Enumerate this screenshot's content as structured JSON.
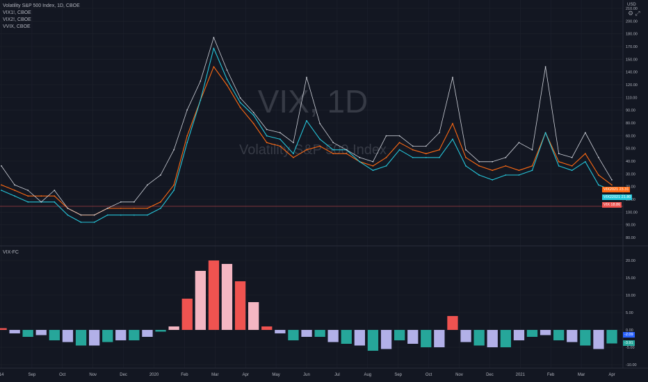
{
  "legend": {
    "main": "Volatility S&P 500 Index, 1D, CBOE",
    "comparisons": [
      "VIX1!, CBOE",
      "VIX2!, CBOE",
      "VVIX, CBOE"
    ]
  },
  "watermark": {
    "symbol": "VIX, 1D",
    "name": "Volatility S&P 500 Index"
  },
  "indicator": {
    "label": "VIX-FC"
  },
  "toolbar": {
    "currency": "USD"
  },
  "colors": {
    "background": "#131722",
    "vix_line": "#ff6a13",
    "vix2_line": "#26c6da",
    "vvix_line": "#d1d4dc",
    "hist_positive": "#ef5350",
    "hist_pos_light": "#f4b6c2",
    "hist_negative": "#26a69a",
    "hist_neg_light": "#b2b0e8",
    "price_line": "#ef5350"
  },
  "price_axis": {
    "main_ticks": [
      "210.00",
      "200.00",
      "180.00",
      "170.00",
      "150.00",
      "140.00",
      "120.00",
      "110.00",
      "90.00",
      "80.00",
      "60.00",
      "50.00",
      "40.00",
      "30.00",
      "20.00",
      "10.00",
      "100.00",
      "90.00",
      "80.00"
    ],
    "indicator_ticks": [
      "20.00",
      "15.00",
      "10.00",
      "5.00",
      "0.00",
      "-5.00",
      "-10.00"
    ]
  },
  "price_tags": [
    {
      "label": "VIX2021",
      "value": "23.31",
      "color": "#ff6a13"
    },
    {
      "label": "VIX22021",
      "value": "21.80",
      "color": "#26c6da"
    },
    {
      "label": "VIX",
      "value": "18.86",
      "color": "#ef5350"
    },
    {
      "label": "",
      "value": "-2.09",
      "color": "#2962ff"
    },
    {
      "label": "",
      "value": "-3.91",
      "color": "#26a69a"
    }
  ],
  "time_axis": [
    "14",
    "Sep",
    "Oct",
    "Nov",
    "Dec",
    "2020",
    "Feb",
    "Mar",
    "Apr",
    "May",
    "Jun",
    "Jul",
    "Aug",
    "Sep",
    "Oct",
    "Nov",
    "Dec",
    "2021",
    "Feb",
    "Mar",
    "Apr"
  ],
  "chart_data": [
    {
      "type": "line",
      "title": "Volatility S&P 500 Index, 1D, CBOE",
      "x": [
        "Aug-14",
        "Aug-29",
        "Sep-16",
        "Oct-01",
        "Oct-16",
        "Nov-01",
        "Nov-16",
        "Dec-01",
        "Dec-16",
        "Jan-01",
        "Jan-16",
        "Feb-01",
        "Feb-16",
        "Feb-24",
        "Mar-02",
        "Mar-09",
        "Mar-16",
        "Mar-23",
        "Apr-01",
        "Apr-16",
        "May-01",
        "May-16",
        "Jun-01",
        "Jun-11",
        "Jun-16",
        "Jul-01",
        "Jul-16",
        "Aug-01",
        "Aug-16",
        "Sep-01",
        "Sep-08",
        "Sep-16",
        "Oct-01",
        "Oct-16",
        "Oct-30",
        "Nov-09",
        "Nov-16",
        "Dec-01",
        "Dec-16",
        "Jan-01",
        "Jan-16",
        "Jan-27",
        "Feb-01",
        "Feb-16",
        "Mar-01",
        "Mar-16",
        "Mar-31"
      ],
      "series": [
        {
          "name": "VIX1!, CBOE",
          "values": [
            20,
            19,
            18,
            18,
            18,
            16,
            15,
            15,
            16,
            16,
            16,
            16,
            17,
            20,
            32,
            45,
            62,
            52,
            42,
            36,
            30,
            29,
            26,
            28,
            29,
            27,
            27,
            25,
            24,
            26,
            30,
            28,
            27,
            28,
            36,
            26,
            24,
            23,
            24,
            23,
            24,
            33,
            25,
            24,
            27,
            22,
            20
          ]
        },
        {
          "name": "VIX2!, CBOE",
          "values": [
            19,
            18,
            17,
            17,
            17,
            15,
            14,
            14,
            15,
            15,
            15,
            15,
            16,
            19,
            30,
            45,
            74,
            55,
            44,
            39,
            32,
            31,
            27,
            37,
            31,
            28,
            28,
            25,
            23,
            24,
            28,
            26,
            26,
            26,
            31,
            24,
            22,
            21,
            22,
            22,
            23,
            33,
            24,
            23,
            25,
            20,
            19
          ]
        },
        {
          "name": "VVIX, CBOE",
          "values": [
            24,
            20,
            19,
            17,
            19,
            16,
            15,
            15,
            16,
            17,
            17,
            20,
            22,
            28,
            41,
            54,
            82,
            60,
            46,
            40,
            34,
            33,
            30,
            56,
            36,
            30,
            28,
            26,
            25,
            32,
            32,
            29,
            29,
            33,
            56,
            28,
            25,
            25,
            26,
            30,
            28,
            62,
            27,
            26,
            33,
            26,
            21
          ]
        }
      ]
    },
    {
      "type": "bar",
      "title": "VIX-FC",
      "categories": [
        "Aug-14",
        "Aug-29",
        "Sep-16",
        "Oct-01",
        "Oct-16",
        "Nov-01",
        "Nov-16",
        "Dec-01",
        "Dec-16",
        "Jan-01",
        "Jan-16",
        "Feb-01",
        "Feb-16",
        "Feb-24",
        "Mar-02",
        "Mar-09",
        "Mar-16",
        "Mar-23",
        "Apr-01",
        "Apr-16",
        "May-01",
        "May-16",
        "Jun-01",
        "Jun-11",
        "Jun-16",
        "Jul-01",
        "Jul-16",
        "Aug-01",
        "Aug-16",
        "Sep-01",
        "Sep-08",
        "Sep-16",
        "Oct-01",
        "Oct-16",
        "Oct-30",
        "Nov-09",
        "Nov-16",
        "Dec-01",
        "Dec-16",
        "Jan-01",
        "Jan-16",
        "Jan-27",
        "Feb-01",
        "Feb-16",
        "Mar-01",
        "Mar-16",
        "Mar-31"
      ],
      "values": [
        0.5,
        -1,
        -2,
        -1.5,
        -3,
        -3.5,
        -4.5,
        -4.5,
        -3.5,
        -3,
        -3,
        -2,
        -0.5,
        1,
        9,
        17,
        20,
        19,
        14,
        8,
        1,
        -1,
        -3,
        -2,
        -2,
        -3.5,
        -4,
        -4.5,
        -6,
        -5.5,
        -3,
        -4,
        -5,
        -5,
        4,
        -3.5,
        -4.5,
        -5,
        -5,
        -3,
        -2,
        -1.5,
        -3,
        -3.5,
        -4.5,
        -5.5,
        -3.9
      ],
      "ylim": [
        -10,
        22
      ]
    }
  ]
}
